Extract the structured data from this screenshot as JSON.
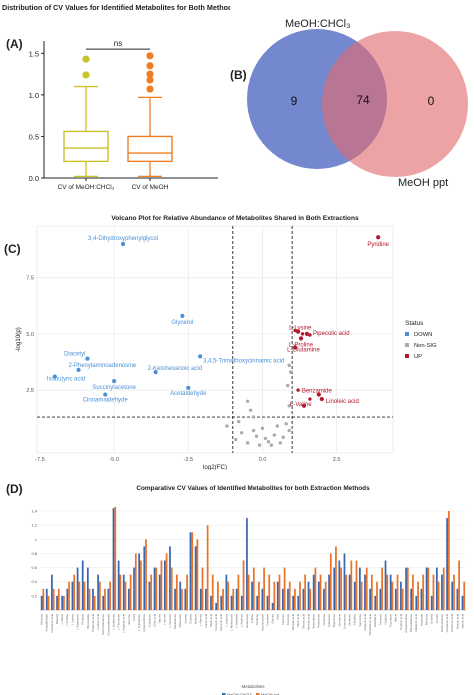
{
  "panel_labels": {
    "a": "(A)",
    "b": "(B)",
    "c": "(C)",
    "d": "(D)"
  },
  "chart_data": [
    {
      "id": "boxplot",
      "type": "box",
      "title": "Distribution of CV Values for Identified Metabolites for Both Methods",
      "ylim": [
        0,
        1.6
      ],
      "yticks": [
        0.0,
        0.5,
        1.0,
        1.5
      ],
      "yticklabels": [
        "0.0",
        "0.5",
        "1.0",
        "1.5"
      ],
      "significance": "ns",
      "groups": [
        {
          "label": "CV of MeOH:CHCl₃",
          "color": "#c9c22a",
          "q1": 0.2,
          "median": 0.36,
          "q3": 0.56,
          "whisker_low": 0.02,
          "whisker_high": 1.1,
          "outliers": [
            1.24,
            1.43
          ]
        },
        {
          "label": "CV of MeOH",
          "color": "#ef7d22",
          "q1": 0.2,
          "median": 0.3,
          "q3": 0.5,
          "whisker_low": 0.02,
          "whisker_high": 0.97,
          "outliers": [
            1.07,
            1.18,
            1.25,
            1.35,
            1.47
          ]
        }
      ]
    },
    {
      "id": "venn",
      "type": "venn",
      "sets": [
        {
          "label": "MeOH:CHCl₃",
          "unique": "9",
          "color": "#5b73c7"
        },
        {
          "label": "MeOH ppt",
          "unique": "0",
          "color": "#e26b6f"
        }
      ],
      "intersection": "74"
    },
    {
      "id": "volcano",
      "type": "scatter",
      "title": "Volcano Plot for Relative Abundance of Metabolites Shared in Both Extractions",
      "xlabel": "log2(FC)",
      "ylabel": "-log10(p)",
      "xlim": [
        -7.6,
        4.4
      ],
      "ylim": [
        -0.3,
        9.8
      ],
      "xticks": [
        -7.5,
        -5.0,
        -2.5,
        0.0,
        2.5
      ],
      "xticklabels": [
        "-7.5",
        "-5.0",
        "-2.5",
        "0.0",
        "2.5"
      ],
      "yticks": [
        2.5,
        5.0,
        7.5
      ],
      "yticklabels": [
        "2.5",
        "5.0",
        "7.5"
      ],
      "fc_threshold": [
        -1,
        1
      ],
      "p_threshold": 1.3,
      "legend": {
        "title": "Status",
        "position": "right",
        "entries": [
          {
            "label": "DOWN",
            "color": "#4a90d9"
          },
          {
            "label": "Non-SIG",
            "color": "#aaaaaa"
          },
          {
            "label": "UP",
            "color": "#b2182b"
          }
        ]
      },
      "points_labeled": [
        {
          "label": "3,4-Dihydroxyphenylglycol",
          "x": -4.7,
          "y": 9.0,
          "status": "DOWN"
        },
        {
          "label": "Glycerol",
          "x": -2.7,
          "y": 5.8,
          "status": "DOWN"
        },
        {
          "label": "Diacetyl",
          "x": -5.9,
          "y": 3.9,
          "status": "DOWN"
        },
        {
          "label": "2-Phenylaminoadenosine",
          "x": -6.2,
          "y": 3.4,
          "status": "DOWN"
        },
        {
          "label": "Isobutyric acid",
          "x": -7.0,
          "y": 3.1,
          "status": "DOWN"
        },
        {
          "label": "Succinylacetone",
          "x": -5.0,
          "y": 2.9,
          "status": "DOWN"
        },
        {
          "label": "Cinnamaldehyde",
          "x": -5.3,
          "y": 2.3,
          "status": "DOWN"
        },
        {
          "label": "3,4,5-Trimethoxycinnamic acid",
          "x": -2.1,
          "y": 4.0,
          "status": "DOWN"
        },
        {
          "label": "2-Ketohexanoic acid",
          "x": -3.6,
          "y": 3.3,
          "status": "DOWN"
        },
        {
          "label": "Acetaldehyde",
          "x": -2.5,
          "y": 2.6,
          "status": "DOWN"
        },
        {
          "label": "Pyridine",
          "x": 3.9,
          "y": 9.3,
          "status": "UP"
        },
        {
          "label": "L-Lysine",
          "x": 1.2,
          "y": 5.1,
          "status": "UP"
        },
        {
          "label": "Pipecolic acid",
          "x": 1.5,
          "y": 5.0,
          "status": "UP"
        },
        {
          "label": "L-Proline",
          "x": 1.3,
          "y": 4.8,
          "status": "UP"
        },
        {
          "label": "L-Glutamine",
          "x": 1.1,
          "y": 4.4,
          "status": "UP"
        },
        {
          "label": "Benzamide",
          "x": 1.9,
          "y": 2.3,
          "status": "UP"
        },
        {
          "label": "Linoleic acid",
          "x": 2.0,
          "y": 2.1,
          "status": "UP"
        },
        {
          "label": "L-Valine",
          "x": 1.4,
          "y": 1.8,
          "status": "UP"
        }
      ],
      "points_other": [
        {
          "x": 1.1,
          "y": 5.15,
          "status": "UP"
        },
        {
          "x": 1.35,
          "y": 5.0,
          "status": "UP"
        },
        {
          "x": 1.6,
          "y": 4.95,
          "status": "UP"
        },
        {
          "x": 1.2,
          "y": 2.5,
          "status": "UP"
        },
        {
          "x": 1.6,
          "y": 2.1,
          "status": "UP"
        },
        {
          "x": -0.5,
          "y": 2.0,
          "status": "Non-SIG"
        },
        {
          "x": -0.4,
          "y": 1.6,
          "status": "Non-SIG"
        },
        {
          "x": -0.3,
          "y": 1.3,
          "status": "Non-SIG"
        },
        {
          "x": -1.2,
          "y": 0.9,
          "status": "Non-SIG"
        },
        {
          "x": -0.7,
          "y": 0.6,
          "status": "Non-SIG"
        },
        {
          "x": -0.9,
          "y": 0.3,
          "status": "Non-SIG"
        },
        {
          "x": -0.2,
          "y": 0.45,
          "status": "Non-SIG"
        },
        {
          "x": 0.1,
          "y": 0.35,
          "status": "Non-SIG"
        },
        {
          "x": 0.4,
          "y": 0.5,
          "status": "Non-SIG"
        },
        {
          "x": 0.7,
          "y": 0.4,
          "status": "Non-SIG"
        },
        {
          "x": 0.2,
          "y": 0.2,
          "status": "Non-SIG"
        },
        {
          "x": -0.5,
          "y": 0.15,
          "status": "Non-SIG"
        },
        {
          "x": 0.6,
          "y": 0.15,
          "status": "Non-SIG"
        },
        {
          "x": 0.9,
          "y": 0.7,
          "status": "Non-SIG"
        },
        {
          "x": 0.8,
          "y": 1.0,
          "status": "Non-SIG"
        },
        {
          "x": 0.9,
          "y": 1.8,
          "status": "Non-SIG"
        },
        {
          "x": 0.85,
          "y": 2.7,
          "status": "Non-SIG"
        },
        {
          "x": 0.95,
          "y": 3.3,
          "status": "Non-SIG"
        },
        {
          "x": 0.9,
          "y": 3.6,
          "status": "Non-SIG"
        },
        {
          "x": -0.1,
          "y": 0.05,
          "status": "Non-SIG"
        },
        {
          "x": 0.3,
          "y": 0.05,
          "status": "Non-SIG"
        },
        {
          "x": -0.3,
          "y": 0.7,
          "status": "Non-SIG"
        },
        {
          "x": 0.5,
          "y": 0.9,
          "status": "Non-SIG"
        },
        {
          "x": 0.0,
          "y": 0.8,
          "status": "Non-SIG"
        },
        {
          "x": -0.8,
          "y": 1.1,
          "status": "Non-SIG"
        }
      ]
    },
    {
      "id": "cvbars",
      "type": "bar",
      "title": "Comparative CV Values of Identified Metabolites for both Extraction Methods",
      "xlabel": "Metabolites",
      "ylim": [
        0,
        1.5
      ],
      "yticks": [
        0.2,
        0.4,
        0.6,
        0.8,
        1.0,
        1.2,
        1.4
      ],
      "yticklabels": [
        "0.2",
        "0.4",
        "0.6",
        "0.8",
        "1",
        "1.2",
        "1.4"
      ],
      "legend_position": "bottom",
      "series": [
        {
          "name": "MeOH:CHCl3",
          "color": "#3a66b0",
          "values": [
            0.2,
            0.3,
            0.5,
            0.2,
            0.2,
            0.3,
            0.4,
            0.6,
            0.7,
            0.6,
            0.3,
            0.5,
            0.2,
            0.3,
            1.44,
            0.7,
            0.5,
            0.3,
            0.6,
            0.8,
            0.9,
            0.4,
            0.6,
            0.5,
            0.7,
            0.9,
            0.3,
            0.4,
            0.3,
            1.1,
            0.9,
            0.3,
            0.3,
            0.2,
            0.1,
            0.2,
            0.5,
            0.2,
            0.3,
            0.2,
            1.3,
            0.4,
            0.2,
            0.3,
            0.2,
            0.1,
            0.4,
            0.3,
            0.3,
            0.2,
            0.2,
            0.3,
            0.4,
            0.5,
            0.4,
            0.3,
            0.5,
            0.6,
            0.7,
            0.8,
            0.5,
            0.4,
            0.6,
            0.5,
            0.3,
            0.2,
            0.3,
            0.7,
            0.5,
            0.3,
            0.4,
            0.6,
            0.3,
            0.2,
            0.3,
            0.6,
            0.2,
            0.6,
            0.5,
            1.3,
            0.4,
            0.3,
            0.2
          ]
        },
        {
          "name": "MeOH ppt",
          "color": "#e8742c",
          "values": [
            0.3,
            0.2,
            0.3,
            0.3,
            0.2,
            0.4,
            0.5,
            0.4,
            0.4,
            0.3,
            0.2,
            0.4,
            0.3,
            0.4,
            1.46,
            0.5,
            0.4,
            0.5,
            0.8,
            0.7,
            1.0,
            0.5,
            0.6,
            0.7,
            0.8,
            0.6,
            0.5,
            0.3,
            0.5,
            1.1,
            1.0,
            0.6,
            1.2,
            0.5,
            0.4,
            0.3,
            0.4,
            0.3,
            0.5,
            0.7,
            0.5,
            0.6,
            0.4,
            0.6,
            0.5,
            0.4,
            0.5,
            0.6,
            0.4,
            0.3,
            0.4,
            0.5,
            0.3,
            0.6,
            0.5,
            0.4,
            0.8,
            0.9,
            0.6,
            0.5,
            0.7,
            0.7,
            0.4,
            0.6,
            0.5,
            0.4,
            0.6,
            0.5,
            0.4,
            0.5,
            0.3,
            0.6,
            0.5,
            0.4,
            0.5,
            0.6,
            0.5,
            0.4,
            0.6,
            1.4,
            0.5,
            0.7,
            0.4
          ]
        }
      ],
      "categories": [
        "Glycerol",
        "Acetaldehyde",
        "Isobutyric acid",
        "Diacetyl",
        "L-Valine",
        "L-Proline",
        "L-Lysine",
        "L-Glutamine",
        "Pyridine",
        "Benzamide",
        "Pipecolic acid",
        "Linoleic acid",
        "Succinylacetone",
        "Cinnamaldehyde",
        "L-Isoleucine",
        "L-Threonine",
        "L-Aspartic acid",
        "Sucrose",
        "Uracil",
        "L-Tryptophan",
        "Hypoxanthine",
        "Creatinine",
        "Citric acid",
        "Taurine",
        "L-Serine",
        "L-Tyrosine",
        "Glutathione",
        "Adenosine",
        "Inosine",
        "Choline",
        "Betaine",
        "L-Alanine",
        "Lactic acid",
        "Malic acid",
        "Fumaric acid",
        "Succinic acid",
        "L-Leucine",
        "L-Methionine",
        "L-Histidine",
        "L-Arginine",
        "Guanosine",
        "Uridine",
        "Xanthine",
        "Nicotinamide",
        "Carnitine",
        "Glycine",
        "Urea",
        "Glucose",
        "Fructose",
        "Palmitic acid",
        "Oleic acid",
        "Stearic acid",
        "Myristic acid",
        "Spermidine",
        "Putrescine",
        "Tyramine",
        "Histamine",
        "Dopamine",
        "Serotonin",
        "Kynurenine",
        "Ornithine",
        "Citrulline",
        "Sarcosine",
        "Hippuric acid",
        "Pantothenic acid",
        "Riboflavin",
        "Thymine",
        "Cytidine",
        "Thymidine",
        "Niacin",
        "Pyruvic acid",
        "Acetylcarnitine",
        "Phenylalanine",
        "Glutamic acid",
        "Aspartate",
        "Mannitol",
        "Sorbitol",
        "Inositol",
        "Ethanolamine",
        "Isovaleric acid",
        "Propionic acid",
        "Butyric acid",
        "Valeric acid"
      ],
      "tick_labels_visible": false
    }
  ]
}
